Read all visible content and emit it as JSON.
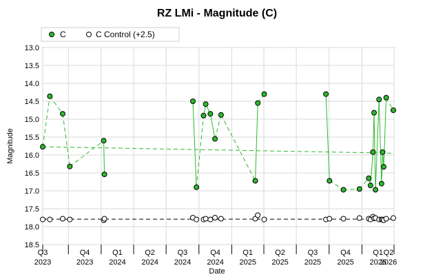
{
  "chart_data": {
    "type": "scatter",
    "title": "RZ LMi - Magnitude (C)",
    "xlabel": "Date",
    "ylabel": "Magnitude",
    "y_inverted": true,
    "ylim": [
      18.5,
      13.0
    ],
    "yticks": [
      "13.0",
      "13.5",
      "14.0",
      "14.5",
      "15.0",
      "15.5",
      "16.0",
      "16.5",
      "17.0",
      "17.5",
      "18.0",
      "18.5"
    ],
    "xlim": [
      "2023-07-21",
      "2026-04-01"
    ],
    "x_tick_labels": [
      {
        "date": "2023-07-01",
        "q": "Q3",
        "y": "2023"
      },
      {
        "date": "2023-10-01",
        "q": "Q4",
        "y": "2023"
      },
      {
        "date": "2024-01-01",
        "q": "Q1",
        "y": "2024"
      },
      {
        "date": "2024-04-01",
        "q": "Q2",
        "y": "2024"
      },
      {
        "date": "2024-07-01",
        "q": "Q3",
        "y": "2024"
      },
      {
        "date": "2024-10-01",
        "q": "Q4",
        "y": "2024"
      },
      {
        "date": "2025-01-01",
        "q": "Q1",
        "y": "2025"
      },
      {
        "date": "2025-04-01",
        "q": "Q2",
        "y": "2025"
      },
      {
        "date": "2025-07-01",
        "q": "Q3",
        "y": "2025"
      },
      {
        "date": "2025-10-01",
        "q": "Q4",
        "y": "2025"
      },
      {
        "date": "2026-01-01",
        "q": "Q1",
        "y": "2026"
      },
      {
        "date": "2026-04-01",
        "q": "Q2",
        "y": "2026"
      }
    ],
    "legend_position": "top-left",
    "grid": true,
    "series": [
      {
        "name": "C",
        "color": "#2db82d",
        "marker": "filled-circle",
        "points": [
          [
            "2023-07-21",
            15.77
          ],
          [
            "2023-08-10",
            14.36
          ],
          [
            "2023-09-15",
            14.85
          ],
          [
            "2023-10-05",
            16.32
          ],
          [
            "2024-01-08",
            15.6
          ],
          [
            "2024-01-10",
            16.54
          ],
          [
            "2024-09-14",
            14.5
          ],
          [
            "2024-09-24",
            16.9
          ],
          [
            "2024-10-14",
            14.9
          ],
          [
            "2024-10-20",
            14.58
          ],
          [
            "2024-11-02",
            14.85
          ],
          [
            "2024-11-15",
            15.55
          ],
          [
            "2024-12-02",
            14.88
          ],
          [
            "2025-03-08",
            16.72
          ],
          [
            "2025-03-15",
            14.55
          ],
          [
            "2025-04-02",
            14.3
          ],
          [
            "2025-09-22",
            14.3
          ],
          [
            "2025-10-02",
            16.72
          ],
          [
            "2025-11-10",
            16.97
          ],
          [
            "2025-12-25",
            16.95
          ],
          [
            "2026-01-20",
            16.65
          ],
          [
            "2026-01-25",
            16.85
          ],
          [
            "2026-02-01",
            15.92
          ],
          [
            "2026-02-04",
            14.82
          ],
          [
            "2026-02-08",
            16.97
          ],
          [
            "2026-02-18",
            14.45
          ],
          [
            "2026-02-25",
            16.8
          ],
          [
            "2026-02-28",
            15.92
          ],
          [
            "2026-03-03",
            16.33
          ],
          [
            "2026-03-10",
            14.4
          ],
          [
            "2026-03-30",
            14.75
          ]
        ]
      },
      {
        "name": "C Control (+2.5)",
        "color": "#ffffff",
        "marker": "open-circle",
        "points": [
          [
            "2023-07-21",
            17.8
          ],
          [
            "2023-08-10",
            17.8
          ],
          [
            "2023-09-15",
            17.78
          ],
          [
            "2023-10-05",
            17.8
          ],
          [
            "2024-01-08",
            17.82
          ],
          [
            "2024-01-10",
            17.78
          ],
          [
            "2024-09-14",
            17.75
          ],
          [
            "2024-09-24",
            17.8
          ],
          [
            "2024-10-14",
            17.8
          ],
          [
            "2024-10-20",
            17.78
          ],
          [
            "2024-11-02",
            17.8
          ],
          [
            "2024-11-15",
            17.75
          ],
          [
            "2024-12-02",
            17.78
          ],
          [
            "2025-03-08",
            17.78
          ],
          [
            "2025-03-15",
            17.68
          ],
          [
            "2025-04-02",
            17.8
          ],
          [
            "2025-09-22",
            17.8
          ],
          [
            "2025-10-02",
            17.78
          ],
          [
            "2025-11-10",
            17.78
          ],
          [
            "2025-12-25",
            17.76
          ],
          [
            "2026-01-20",
            17.78
          ],
          [
            "2026-01-25",
            17.8
          ],
          [
            "2026-02-01",
            17.72
          ],
          [
            "2026-02-04",
            17.77
          ],
          [
            "2026-02-08",
            17.76
          ],
          [
            "2026-02-18",
            17.8
          ],
          [
            "2026-02-25",
            17.8
          ],
          [
            "2026-02-28",
            17.8
          ],
          [
            "2026-03-03",
            17.82
          ],
          [
            "2026-03-10",
            17.78
          ],
          [
            "2026-03-30",
            17.76
          ]
        ]
      }
    ],
    "trend_lines": [
      {
        "series": "C",
        "style": "dashed",
        "color": "#2db82d",
        "points": [
          [
            "2023-07-21",
            15.77
          ],
          [
            "2026-04-01",
            15.95
          ]
        ]
      },
      {
        "series": "C Control (+2.5)",
        "style": "dashed",
        "color": "#000000",
        "points": [
          [
            "2023-07-21",
            17.79
          ],
          [
            "2026-04-01",
            17.79
          ]
        ]
      }
    ]
  }
}
